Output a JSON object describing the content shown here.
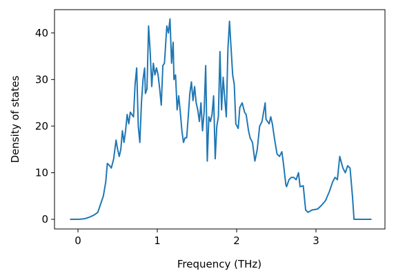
{
  "chart_data": {
    "type": "line",
    "xlabel": "Frequency (THz)",
    "ylabel": "Density of states",
    "x": [
      -0.1,
      0,
      0.05,
      0.1,
      0.15,
      0.2,
      0.25,
      0.28,
      0.32,
      0.35,
      0.37,
      0.4,
      0.42,
      0.45,
      0.48,
      0.5,
      0.52,
      0.54,
      0.56,
      0.58,
      0.6,
      0.62,
      0.64,
      0.66,
      0.68,
      0.7,
      0.72,
      0.74,
      0.76,
      0.78,
      0.8,
      0.82,
      0.84,
      0.85,
      0.87,
      0.89,
      0.91,
      0.93,
      0.95,
      0.97,
      0.99,
      1.01,
      1.03,
      1.05,
      1.07,
      1.09,
      1.12,
      1.14,
      1.16,
      1.18,
      1.2,
      1.21,
      1.23,
      1.25,
      1.27,
      1.29,
      1.31,
      1.33,
      1.35,
      1.37,
      1.39,
      1.41,
      1.43,
      1.45,
      1.47,
      1.49,
      1.51,
      1.53,
      1.55,
      1.57,
      1.59,
      1.61,
      1.63,
      1.65,
      1.67,
      1.69,
      1.71,
      1.73,
      1.75,
      1.77,
      1.79,
      1.81,
      1.83,
      1.85,
      1.87,
      1.89,
      1.91,
      1.95,
      1.97,
      1.99,
      2.02,
      2.04,
      2.07,
      2.1,
      2.12,
      2.15,
      2.17,
      2.2,
      2.23,
      2.26,
      2.29,
      2.32,
      2.36,
      2.37,
      2.41,
      2.43,
      2.45,
      2.48,
      2.51,
      2.54,
      2.57,
      2.59,
      2.62,
      2.63,
      2.66,
      2.69,
      2.72,
      2.75,
      2.78,
      2.8,
      2.84,
      2.87,
      2.9,
      2.95,
      3.02,
      3.07,
      3.12,
      3.17,
      3.21,
      3.24,
      3.27,
      3.3,
      3.34,
      3.37,
      3.4,
      3.43,
      3.46,
      3.48,
      3.7
    ],
    "series": [
      {
        "color": "#1f77b4",
        "values": [
          0,
          0,
          0.05,
          0.2,
          0.5,
          0.9,
          1.5,
          3,
          5,
          8,
          12,
          11.5,
          11,
          13,
          17,
          15,
          13.5,
          15,
          19,
          16.5,
          19,
          22.5,
          20.5,
          23,
          22.5,
          22,
          29,
          32.5,
          20,
          16.5,
          25,
          30,
          32.5,
          27,
          28,
          41.5,
          36,
          28.5,
          33.5,
          31,
          32.5,
          31,
          28,
          24.5,
          33,
          33.5,
          41.5,
          40,
          43,
          33.5,
          38,
          30,
          31,
          23.5,
          26.5,
          23,
          19,
          16.5,
          17.5,
          17.5,
          22,
          27,
          29.5,
          25.5,
          28.5,
          25,
          23.5,
          21,
          25,
          19,
          23,
          33,
          12.5,
          22,
          21,
          22.5,
          26.5,
          13,
          20,
          22,
          36,
          23.5,
          30.5,
          26,
          22,
          36.5,
          42.5,
          31,
          29,
          20.5,
          19.5,
          24,
          25,
          23,
          22.5,
          19,
          17.5,
          16.5,
          12.5,
          15,
          20,
          21,
          25,
          21.5,
          20.5,
          22,
          20.5,
          17,
          14,
          13.5,
          14.5,
          12,
          7.5,
          7,
          8.5,
          9,
          9,
          8.5,
          10,
          7,
          7.2,
          2,
          1.5,
          2,
          2.2,
          3,
          4,
          6,
          8,
          9,
          8.5,
          13.5,
          11,
          10,
          11.5,
          11,
          5,
          0,
          0
        ]
      }
    ],
    "xlim": [
      -0.296,
      3.87
    ],
    "ylim": [
      -2.07,
      45.0
    ],
    "xticks": [
      0,
      1,
      2,
      3
    ],
    "yticks": [
      0,
      10,
      20,
      30,
      40
    ]
  }
}
